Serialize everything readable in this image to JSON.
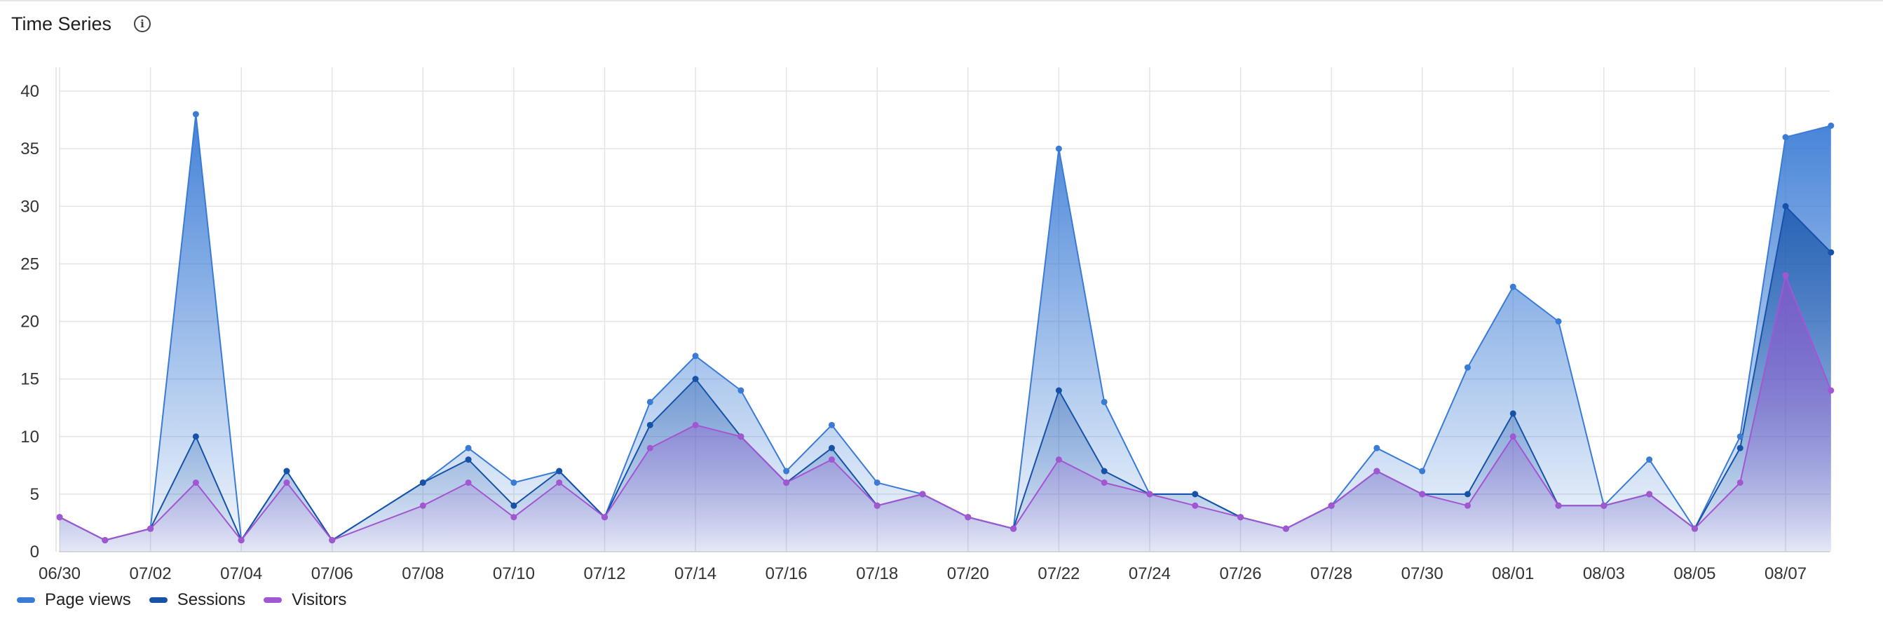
{
  "header": {
    "title": "Time Series",
    "info_icon": "info-circle-icon"
  },
  "chart_data": {
    "type": "area",
    "title": "",
    "xlabel": "",
    "ylabel": "",
    "ylim": [
      0,
      40
    ],
    "yticks": [
      0,
      5,
      10,
      15,
      20,
      25,
      30,
      35,
      40
    ],
    "x": [
      "06/30",
      "07/01",
      "07/02",
      "07/03",
      "07/04",
      "07/05",
      "07/06",
      "07/07",
      "07/08",
      "07/09",
      "07/10",
      "07/11",
      "07/12",
      "07/13",
      "07/14",
      "07/15",
      "07/16",
      "07/17",
      "07/18",
      "07/19",
      "07/20",
      "07/21",
      "07/22",
      "07/23",
      "07/24",
      "07/25",
      "07/26",
      "07/27",
      "07/28",
      "07/29",
      "07/30",
      "07/31",
      "08/01",
      "08/02",
      "08/03",
      "08/04",
      "08/05",
      "08/06",
      "08/07",
      "08/08"
    ],
    "xtick_labels": [
      "06/30",
      "07/02",
      "07/04",
      "07/06",
      "07/08",
      "07/10",
      "07/12",
      "07/14",
      "07/16",
      "07/18",
      "07/20",
      "07/22",
      "07/24",
      "07/26",
      "07/28",
      "07/30",
      "08/01",
      "08/03",
      "08/05",
      "08/07"
    ],
    "grid": true,
    "legend_position": "bottom-left",
    "series": [
      {
        "name": "Page views",
        "color": "#3a7bd5",
        "values": [
          3,
          1,
          2,
          38,
          1,
          7,
          1,
          null,
          6,
          9,
          6,
          7,
          3,
          13,
          17,
          14,
          7,
          11,
          6,
          5,
          3,
          2,
          35,
          13,
          5,
          5,
          3,
          2,
          4,
          9,
          7,
          16,
          23,
          20,
          4,
          8,
          2,
          10,
          36,
          37
        ]
      },
      {
        "name": "Sessions",
        "color": "#1652a8",
        "values": [
          3,
          1,
          2,
          10,
          1,
          7,
          1,
          null,
          6,
          8,
          4,
          7,
          3,
          11,
          15,
          10,
          6,
          9,
          4,
          5,
          3,
          2,
          14,
          7,
          5,
          5,
          3,
          2,
          4,
          7,
          5,
          5,
          12,
          4,
          4,
          5,
          2,
          9,
          30,
          26
        ]
      },
      {
        "name": "Visitors",
        "color": "#a356d1",
        "values": [
          3,
          1,
          2,
          6,
          1,
          6,
          1,
          null,
          4,
          6,
          3,
          6,
          3,
          9,
          11,
          10,
          6,
          8,
          4,
          5,
          3,
          2,
          8,
          6,
          5,
          4,
          3,
          2,
          4,
          7,
          5,
          4,
          10,
          4,
          4,
          5,
          2,
          6,
          24,
          14
        ]
      }
    ]
  }
}
